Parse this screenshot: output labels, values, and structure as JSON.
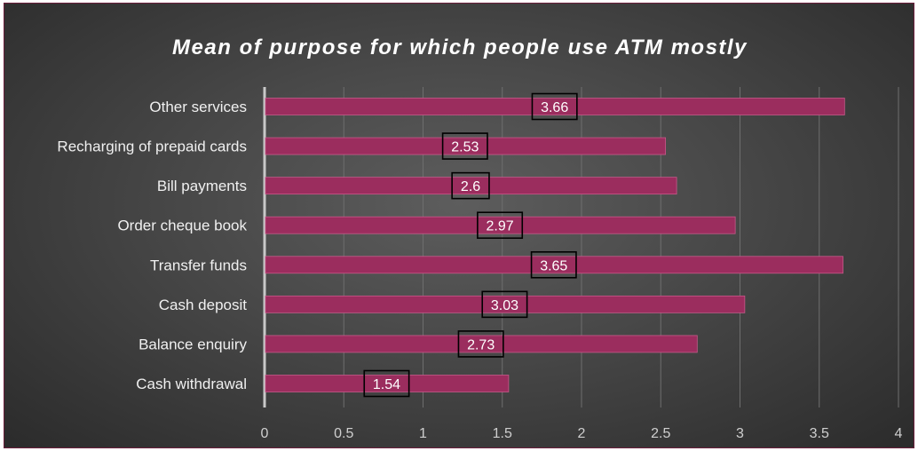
{
  "chart_data": {
    "type": "bar",
    "orientation": "horizontal",
    "title": "Mean of purpose for which people use ATM mostly",
    "categories": [
      "Cash withdrawal",
      "Balance enquiry",
      "Cash deposit",
      "Transfer funds",
      "Order cheque book",
      "Bill payments",
      "Recharging of prepaid cards",
      "Other services"
    ],
    "values": [
      1.54,
      2.73,
      3.03,
      3.65,
      2.97,
      2.6,
      2.53,
      3.66
    ],
    "data_labels": [
      "1.54",
      "2.73",
      "3.03",
      "3.65",
      "2.97",
      "2.6",
      "2.53",
      "3.66"
    ],
    "xlim": [
      0,
      4
    ],
    "x_ticks": [
      "0",
      "0.5",
      "1",
      "1.5",
      "2",
      "2.5",
      "3",
      "3.5",
      "4"
    ],
    "grid": true,
    "legend": "none",
    "xlabel": "",
    "ylabel": "",
    "colors": {
      "bar": "#9b2d5e",
      "bar_edge": "#c65a8a",
      "background": "#484848",
      "frame_border": "#6b1f3c",
      "label_box_border": "#000000"
    }
  }
}
